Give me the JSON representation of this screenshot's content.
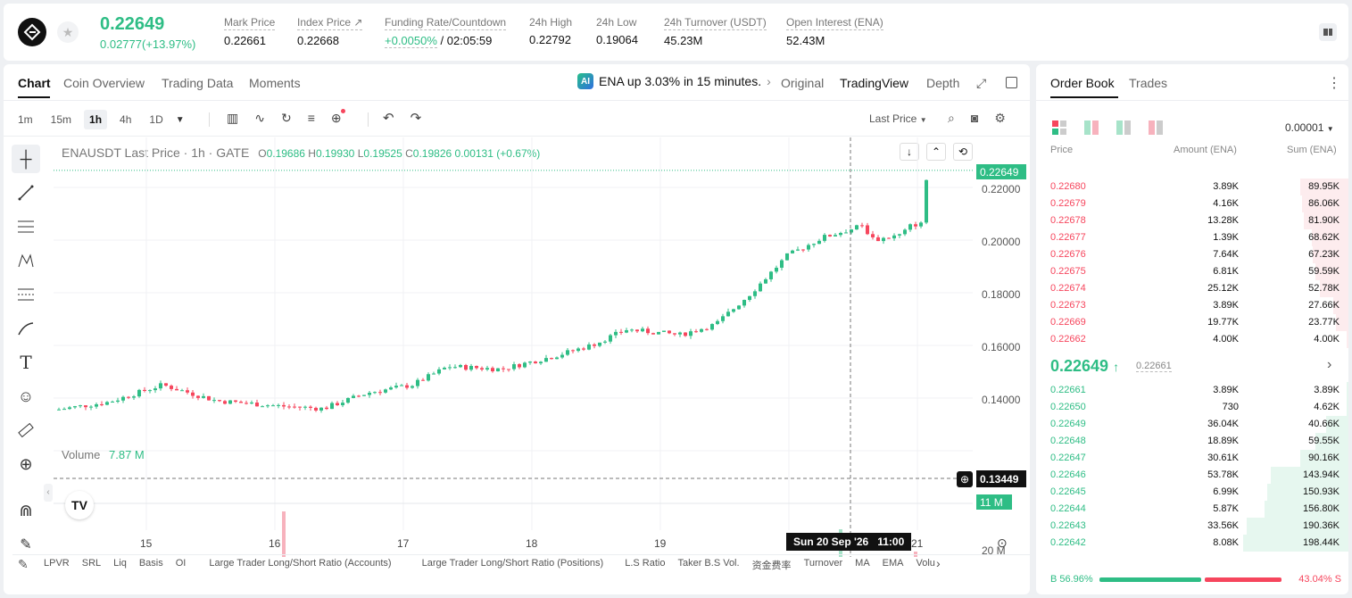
{
  "header": {
    "price": "0.22649",
    "change": "0.02777(+13.97%)",
    "stats": [
      {
        "label": "Mark Price",
        "value": "0.22661"
      },
      {
        "label": "Index Price ↗",
        "value": "0.22668"
      },
      {
        "label": "Funding Rate/Countdown",
        "value_green": "+0.0050%",
        "value_rest": "/ 02:05:59"
      },
      {
        "label": "24h High",
        "value": "0.22792"
      },
      {
        "label": "24h Low",
        "value": "0.19064"
      },
      {
        "label": "24h Turnover (USDT)",
        "value": "45.23M"
      },
      {
        "label": "Open Interest (ENA)",
        "value": "52.43M"
      }
    ]
  },
  "chart_tabs": [
    "Chart",
    "Coin Overview",
    "Trading Data",
    "Moments"
  ],
  "ticker": {
    "text": "ENA up 3.03% in 15 minutes.",
    "chev": "›"
  },
  "view_tabs": [
    "Original",
    "TradingView",
    "Depth"
  ],
  "timeframes": [
    "1m",
    "15m",
    "1h",
    "4h",
    "1D"
  ],
  "price_type": "Last Price",
  "legend": {
    "title": "ENAUSDT Last Price · 1h · GATE",
    "o_label": "O",
    "o": "0.19686",
    "h_label": "H",
    "h": "0.19930",
    "l_label": "L",
    "l": "0.19525",
    "c_label": "C",
    "c": "0.19826",
    "chg": "0.00131",
    "pct": "(+0.67%)"
  },
  "volume": {
    "label": "Volume",
    "value": "7.87 M"
  },
  "price_axis": [
    "0.22000",
    "0.20000",
    "0.18000",
    "0.16000",
    "0.14000"
  ],
  "last_price_tag": "0.22649",
  "cursor_price_tag": "0.13449",
  "vol_axis": [
    "20 M"
  ],
  "vol_tag": "11 M",
  "time_axis": [
    "15",
    "16",
    "17",
    "18",
    "19",
    "21"
  ],
  "crosshair_time": "Sun 20 Sep '26   11:00",
  "bottom_bar": [
    "LPVR",
    "SRL",
    "Liq",
    "Basis",
    "OI",
    "Large Trader Long/Short Ratio (Accounts)",
    "Large Trader Long/Short Ratio (Positions)",
    "L.S Ratio",
    "Taker B.S Vol.",
    "资金费率",
    "Turnover",
    "MA",
    "EMA",
    "Volu"
  ],
  "orderbook": {
    "tabs": [
      "Order Book",
      "Trades"
    ],
    "precision": "0.00001",
    "cols": [
      "Price",
      "Amount (ENA)",
      "Sum (ENA)"
    ],
    "asks": [
      {
        "p": "0.22680",
        "a": "3.89K",
        "s": "89.95K",
        "w": 0.46
      },
      {
        "p": "0.22679",
        "a": "4.16K",
        "s": "86.06K",
        "w": 0.44
      },
      {
        "p": "0.22678",
        "a": "13.28K",
        "s": "81.90K",
        "w": 0.42
      },
      {
        "p": "0.22677",
        "a": "1.39K",
        "s": "68.62K",
        "w": 0.35
      },
      {
        "p": "0.22676",
        "a": "7.64K",
        "s": "67.23K",
        "w": 0.34
      },
      {
        "p": "0.22675",
        "a": "6.81K",
        "s": "59.59K",
        "w": 0.31
      },
      {
        "p": "0.22674",
        "a": "25.12K",
        "s": "52.78K",
        "w": 0.27
      },
      {
        "p": "0.22673",
        "a": "3.89K",
        "s": "27.66K",
        "w": 0.14
      },
      {
        "p": "0.22669",
        "a": "19.77K",
        "s": "23.77K",
        "w": 0.12
      },
      {
        "p": "0.22662",
        "a": "4.00K",
        "s": "4.00K",
        "w": 0.02
      }
    ],
    "mid": {
      "price": "0.22649",
      "arrow": "↑",
      "mark": "0.22661"
    },
    "bids": [
      {
        "p": "0.22661",
        "a": "3.89K",
        "s": "3.89K",
        "w": 0.02
      },
      {
        "p": "0.22650",
        "a": "730",
        "s": "4.62K",
        "w": 0.02
      },
      {
        "p": "0.22649",
        "a": "36.04K",
        "s": "40.66K",
        "w": 0.21
      },
      {
        "p": "0.22648",
        "a": "18.89K",
        "s": "59.55K",
        "w": 0.31
      },
      {
        "p": "0.22647",
        "a": "30.61K",
        "s": "90.16K",
        "w": 0.46
      },
      {
        "p": "0.22646",
        "a": "53.78K",
        "s": "143.94K",
        "w": 0.74
      },
      {
        "p": "0.22645",
        "a": "6.99K",
        "s": "150.93K",
        "w": 0.77
      },
      {
        "p": "0.22644",
        "a": "5.87K",
        "s": "156.80K",
        "w": 0.8
      },
      {
        "p": "0.22643",
        "a": "33.56K",
        "s": "190.36K",
        "w": 0.97
      },
      {
        "p": "0.22642",
        "a": "8.08K",
        "s": "198.44K",
        "w": 1.0
      }
    ],
    "buy_pct": "B 56.96%",
    "sell_pct": "43.04% S",
    "buy_ratio": 0.5696
  }
}
